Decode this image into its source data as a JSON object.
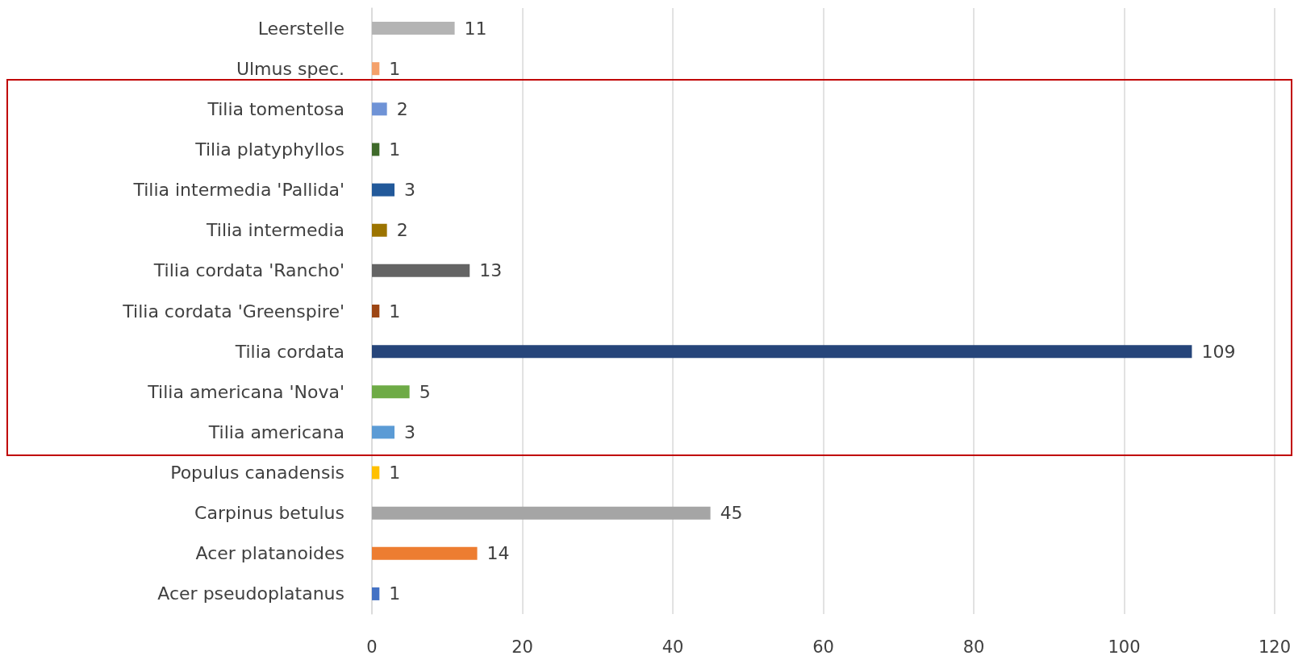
{
  "chart_data": {
    "type": "bar",
    "orientation": "horizontal",
    "categories": [
      "Leerstelle",
      "Ulmus spec.",
      "Tilia tomentosa",
      "Tilia platyphyllos",
      "Tilia intermedia 'Pallida'",
      "Tilia intermedia",
      "Tilia cordata 'Rancho'",
      "Tilia cordata 'Greenspire'",
      "Tilia cordata",
      "Tilia americana 'Nova'",
      "Tilia americana",
      "Populus canadensis",
      "Carpinus betulus",
      "Acer platanoides",
      "Acer pseudoplatanus"
    ],
    "values": [
      11,
      1,
      2,
      1,
      3,
      2,
      13,
      1,
      109,
      5,
      3,
      1,
      45,
      14,
      1
    ],
    "colors": [
      "#b4b4b4",
      "#f4a16b",
      "#6f93d6",
      "#3f6a2a",
      "#22599a",
      "#9c7400",
      "#646464",
      "#9d4614",
      "#26457a",
      "#6eab46",
      "#5b9bd5",
      "#ffc000",
      "#a5a5a5",
      "#ed7d31",
      "#4472c4"
    ],
    "xlim": [
      0,
      120
    ],
    "xticks": [
      0,
      20,
      40,
      60,
      80,
      100,
      120
    ],
    "grid": "x",
    "data_labels": true
  }
}
